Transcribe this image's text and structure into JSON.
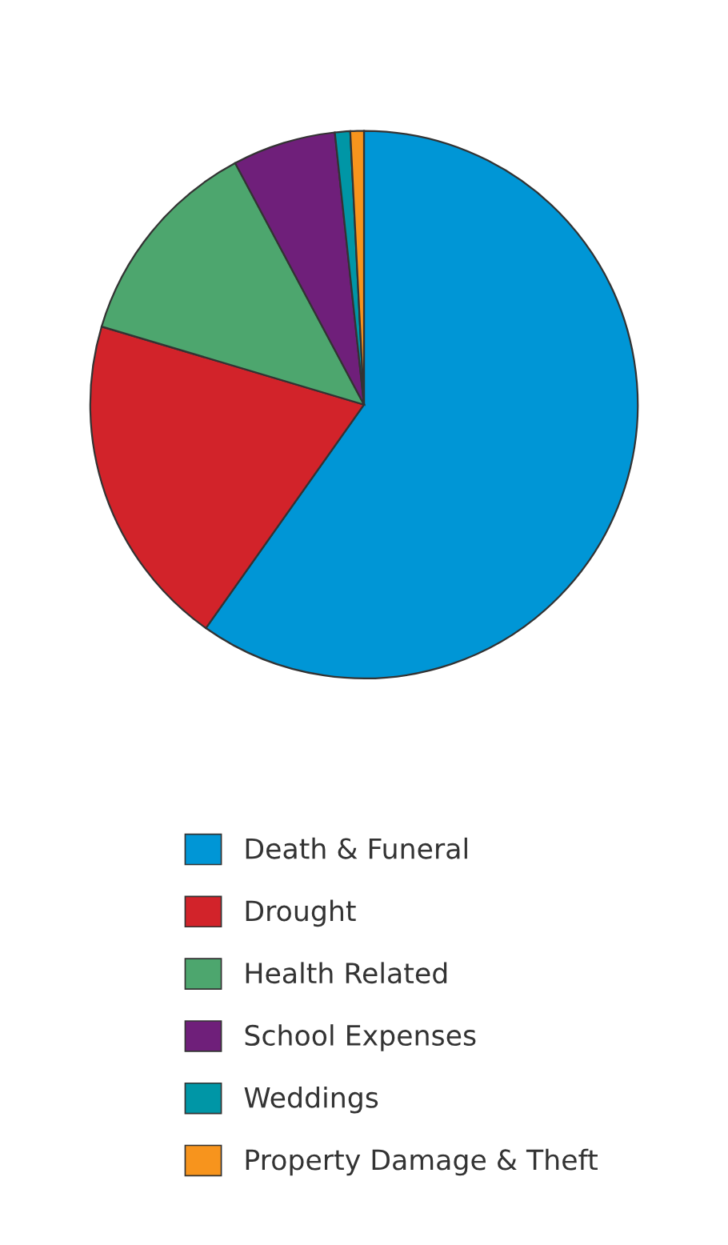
{
  "chart_data": {
    "type": "pie",
    "categories": [
      "Death & Funeral",
      "Drought",
      "Health Related",
      "School Expenses",
      "Weddings",
      "Property Damage & Theft"
    ],
    "values": [
      59.8,
      19.8,
      12.6,
      6.1,
      0.9,
      0.8
    ],
    "colors": [
      "#0096d6",
      "#d2232a",
      "#4da66e",
      "#6f1f7a",
      "#0096a6",
      "#f7941d"
    ],
    "legend": "bottom"
  }
}
